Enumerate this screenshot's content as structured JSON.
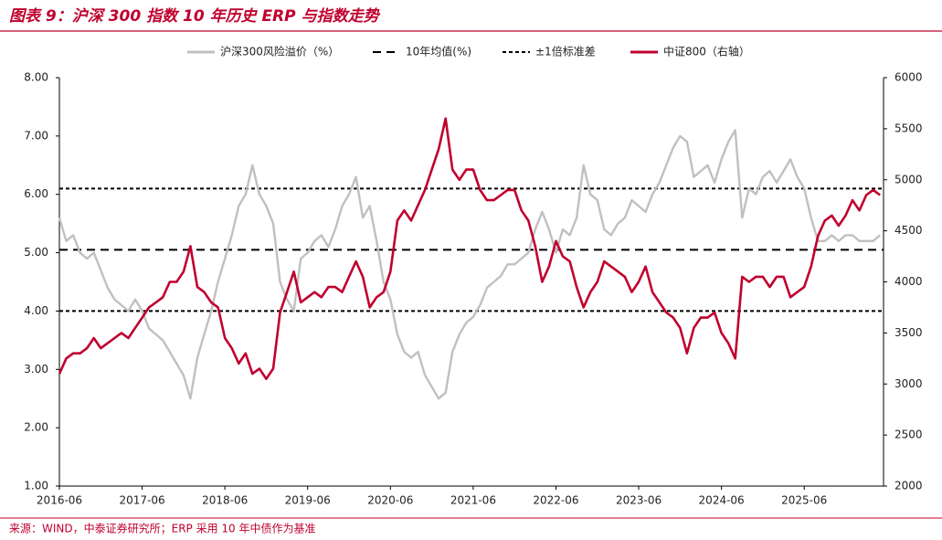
{
  "chart_data": {
    "type": "line",
    "title": "图表 9：沪深 300 指数 10 年历史 ERP 与指数走势",
    "source": "来源：WIND，中泰证券研究所；ERP 采用 10 年中债作为基准",
    "x": [
      "2016-06",
      "2016-07",
      "2016-08",
      "2016-09",
      "2016-10",
      "2016-11",
      "2016-12",
      "2017-01",
      "2017-02",
      "2017-03",
      "2017-04",
      "2017-05",
      "2017-06",
      "2017-07",
      "2017-08",
      "2017-09",
      "2017-10",
      "2017-11",
      "2017-12",
      "2018-01",
      "2018-02",
      "2018-03",
      "2018-04",
      "2018-05",
      "2018-06",
      "2018-07",
      "2018-08",
      "2018-09",
      "2018-10",
      "2018-11",
      "2018-12",
      "2019-01",
      "2019-02",
      "2019-03",
      "2019-04",
      "2019-05",
      "2019-06",
      "2019-07",
      "2019-08",
      "2019-09",
      "2019-10",
      "2019-11",
      "2019-12",
      "2020-01",
      "2020-02",
      "2020-03",
      "2020-04",
      "2020-05",
      "2020-06",
      "2020-07",
      "2020-08",
      "2020-09",
      "2020-10",
      "2020-11",
      "2020-12",
      "2021-01",
      "2021-02",
      "2021-03",
      "2021-04",
      "2021-05",
      "2021-06",
      "2021-07",
      "2021-08",
      "2021-09",
      "2021-10",
      "2021-11",
      "2021-12",
      "2022-01",
      "2022-02",
      "2022-03",
      "2022-04",
      "2022-05",
      "2022-06",
      "2022-07",
      "2022-08",
      "2022-09",
      "2022-10",
      "2022-11",
      "2022-12",
      "2023-01",
      "2023-02",
      "2023-03",
      "2023-04",
      "2023-05",
      "2023-06",
      "2023-07",
      "2023-08",
      "2023-09",
      "2023-10",
      "2023-11",
      "2023-12",
      "2024-01",
      "2024-02",
      "2024-03",
      "2024-04",
      "2024-05",
      "2024-06",
      "2024-07",
      "2024-08",
      "2024-09",
      "2024-10",
      "2024-11",
      "2024-12",
      "2025-01",
      "2025-02",
      "2025-03",
      "2025-04",
      "2025-05",
      "2025-06",
      "2025-07",
      "2025-08",
      "2025-09",
      "2025-10",
      "2025-11",
      "2025-12",
      "2026-01",
      "2026-02",
      "2026-03",
      "2026-04",
      "2026-05"
    ],
    "xticks": [
      "2016-06",
      "2017-06",
      "2018-06",
      "2019-06",
      "2020-06",
      "2021-06",
      "2022-06",
      "2023-06",
      "2024-06",
      "2025-06"
    ],
    "series": [
      {
        "name": "沪深300风险溢价（%）",
        "color": "#c0c0c0",
        "axis": "y",
        "values": [
          5.6,
          5.2,
          5.3,
          5.0,
          4.9,
          5.0,
          4.7,
          4.4,
          4.2,
          4.1,
          4.0,
          4.2,
          4.0,
          3.7,
          3.6,
          3.5,
          3.3,
          3.1,
          2.9,
          2.5,
          3.2,
          3.6,
          4.0,
          4.5,
          4.9,
          5.3,
          5.8,
          6.0,
          6.5,
          6.0,
          5.8,
          5.5,
          4.5,
          4.2,
          4.0,
          4.9,
          5.0,
          5.2,
          5.3,
          5.1,
          5.4,
          5.8,
          6.0,
          6.3,
          5.6,
          5.8,
          5.2,
          4.5,
          4.2,
          3.6,
          3.3,
          3.2,
          3.3,
          2.9,
          2.7,
          2.5,
          2.6,
          3.3,
          3.6,
          3.8,
          3.9,
          4.1,
          4.4,
          4.5,
          4.6,
          4.8,
          4.8,
          4.9,
          5.0,
          5.4,
          5.7,
          5.4,
          5.0,
          5.4,
          5.3,
          5.6,
          6.5,
          6.0,
          5.9,
          5.4,
          5.3,
          5.5,
          5.6,
          5.9,
          5.8,
          5.7,
          6.0,
          6.2,
          6.5,
          6.8,
          7.0,
          6.9,
          6.3,
          6.4,
          6.5,
          6.2,
          6.6,
          6.9,
          7.1,
          5.6,
          6.1,
          6.0,
          6.3,
          6.4,
          6.2,
          6.4,
          6.6,
          6.3,
          6.1,
          5.6,
          5.2,
          5.2,
          5.3,
          5.2,
          5.3,
          5.3,
          5.2,
          5.2,
          5.2,
          5.3
        ]
      },
      {
        "name": "中证800（右轴）",
        "color": "#c0002e",
        "axis": "y2",
        "values": [
          3100,
          3250,
          3300,
          3300,
          3350,
          3450,
          3350,
          3400,
          3450,
          3500,
          3450,
          3550,
          3650,
          3750,
          3800,
          3850,
          4000,
          4000,
          4100,
          4350,
          3950,
          3900,
          3800,
          3750,
          3450,
          3350,
          3200,
          3300,
          3100,
          3150,
          3050,
          3150,
          3700,
          3900,
          4100,
          3800,
          3850,
          3900,
          3850,
          3950,
          3950,
          3900,
          4050,
          4200,
          4050,
          3750,
          3850,
          3900,
          4100,
          4600,
          4700,
          4600,
          4750,
          4900,
          5100,
          5300,
          5600,
          5100,
          5000,
          5100,
          5100,
          4900,
          4800,
          4800,
          4850,
          4900,
          4900,
          4700,
          4600,
          4350,
          4000,
          4150,
          4400,
          4250,
          4200,
          3950,
          3750,
          3900,
          4000,
          4200,
          4150,
          4100,
          4050,
          3900,
          4000,
          4150,
          3900,
          3800,
          3700,
          3650,
          3550,
          3300,
          3550,
          3650,
          3650,
          3700,
          3500,
          3400,
          3250,
          4050,
          4000,
          4050,
          4050,
          3950,
          4050,
          4050,
          3850,
          3900,
          3950,
          4150,
          4450,
          4600,
          4650,
          4550,
          4650,
          4800,
          4700,
          4850,
          4900,
          4850
        ]
      }
    ],
    "reference_lines": [
      {
        "name": "10年均值(%)",
        "color": "#000000",
        "values": [
          5.05
        ]
      },
      {
        "name": "±1倍标准差",
        "color": "#000000",
        "values": [
          4.0,
          6.1
        ]
      }
    ],
    "ylim": [
      1,
      8
    ],
    "yticks": [
      {
        "value": 1,
        "label": "1.00"
      },
      {
        "value": 2,
        "label": "2.00"
      },
      {
        "value": 3,
        "label": "3.00"
      },
      {
        "value": 4,
        "label": "4.00"
      },
      {
        "value": 5,
        "label": "5.00"
      },
      {
        "value": 6,
        "label": "6.00"
      },
      {
        "value": 7,
        "label": "7.00"
      },
      {
        "value": 8,
        "label": "8.00"
      }
    ],
    "y2lim": [
      2000,
      6000
    ],
    "y2ticks": [
      2000,
      2500,
      3000,
      3500,
      4000,
      4500,
      5000,
      5500,
      6000
    ]
  }
}
